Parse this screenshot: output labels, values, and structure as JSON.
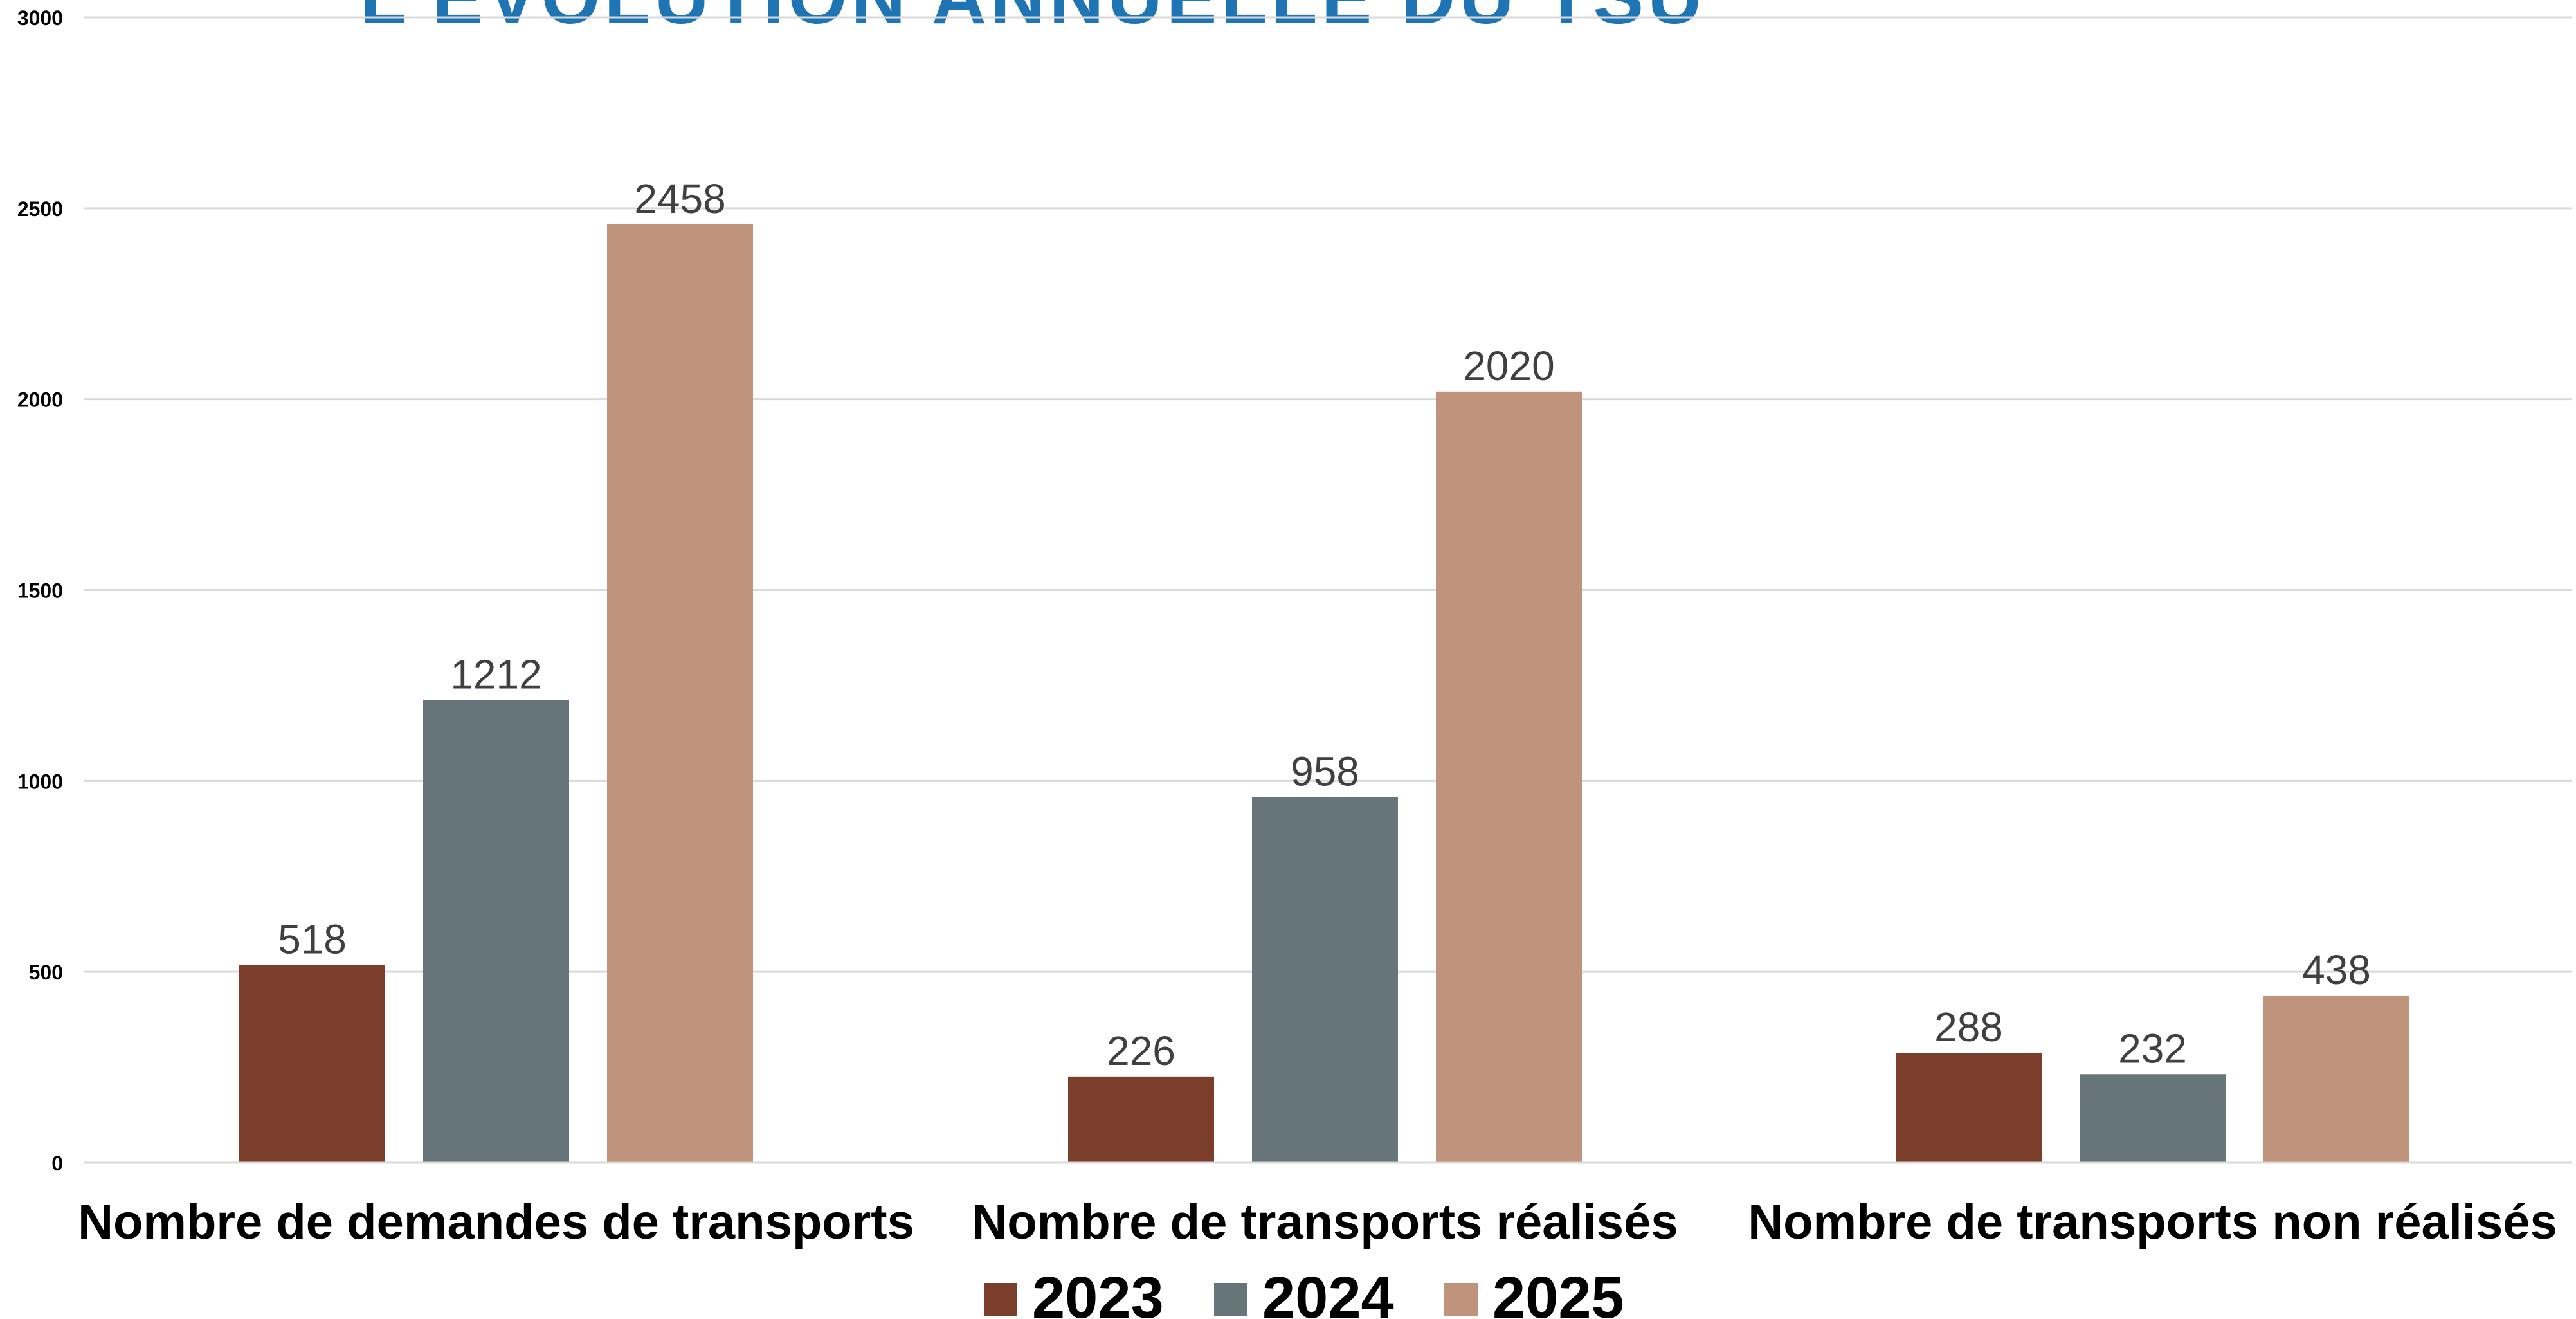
{
  "chart_data": {
    "type": "bar",
    "title": "L'ÉVOLUTION ANNUELLE DU TSU",
    "categories": [
      "Nombre de demandes de transports",
      "Nombre de transports réalisés",
      "Nombre de transports non réalisés"
    ],
    "series": [
      {
        "name": "2023",
        "color": "#7a3e2b",
        "values": [
          518,
          226,
          288
        ]
      },
      {
        "name": "2024",
        "color": "#667577",
        "values": [
          1212,
          958,
          232
        ]
      },
      {
        "name": "2025",
        "color": "#bf937c",
        "values": [
          2458,
          2020,
          438
        ]
      }
    ],
    "ylim": [
      0,
      3000
    ],
    "yticks": [
      0,
      500,
      1000,
      1500,
      2000,
      2500,
      3000
    ],
    "grid": true,
    "legend_position": "bottom",
    "xlabel": "",
    "ylabel": ""
  }
}
